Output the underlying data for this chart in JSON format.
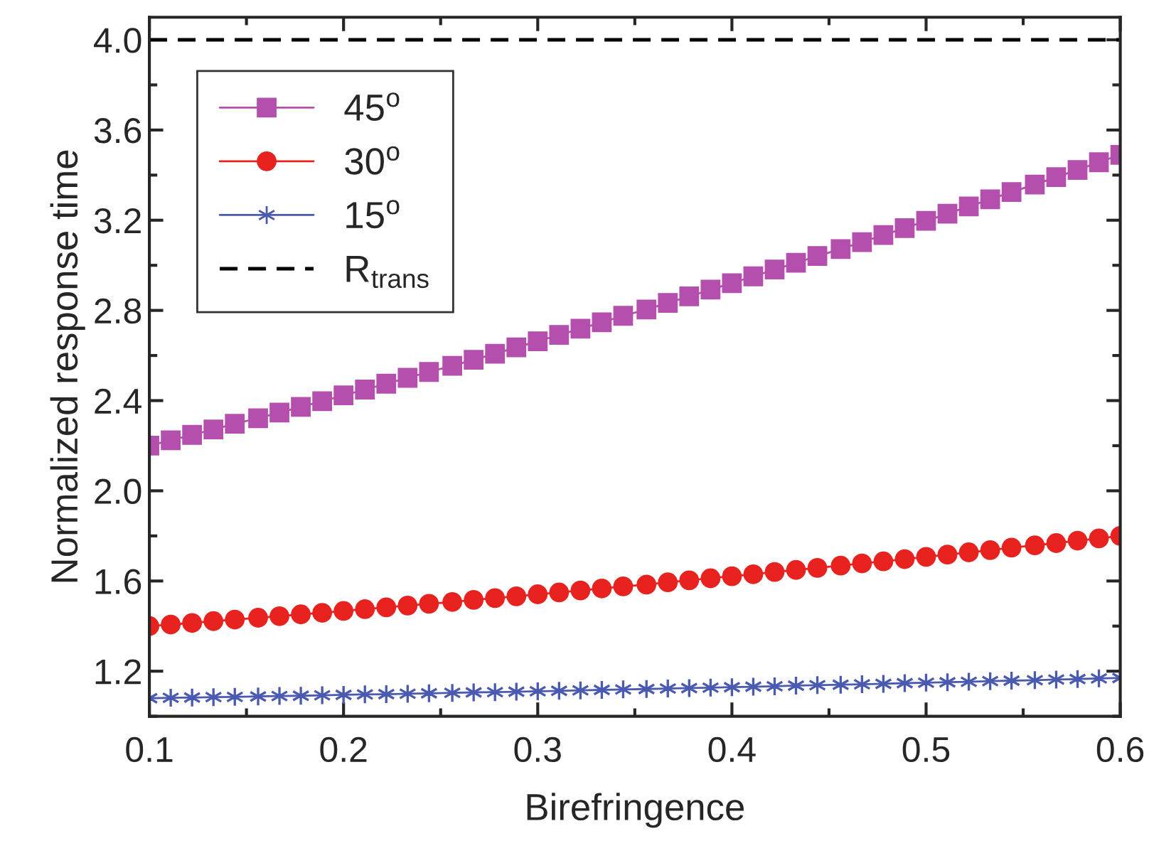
{
  "chart_data": {
    "type": "line",
    "xlabel": "Birefringence",
    "ylabel": "Normalized response time",
    "x": [
      0.1,
      0.111,
      0.122,
      0.133,
      0.144,
      0.156,
      0.167,
      0.178,
      0.189,
      0.2,
      0.211,
      0.222,
      0.233,
      0.244,
      0.256,
      0.267,
      0.278,
      0.289,
      0.3,
      0.311,
      0.322,
      0.333,
      0.344,
      0.356,
      0.367,
      0.378,
      0.389,
      0.4,
      0.411,
      0.422,
      0.433,
      0.444,
      0.456,
      0.467,
      0.478,
      0.489,
      0.5,
      0.511,
      0.522,
      0.533,
      0.544,
      0.556,
      0.567,
      0.578,
      0.589,
      0.6
    ],
    "series": [
      {
        "name": "45$^{o}$",
        "color": "#b44fae",
        "marker": "square",
        "values": [
          2.2,
          2.224,
          2.248,
          2.272,
          2.297,
          2.322,
          2.347,
          2.372,
          2.397,
          2.423,
          2.449,
          2.475,
          2.501,
          2.527,
          2.554,
          2.581,
          2.608,
          2.636,
          2.663,
          2.691,
          2.719,
          2.747,
          2.776,
          2.804,
          2.833,
          2.862,
          2.892,
          2.921,
          2.951,
          2.981,
          3.011,
          3.041,
          3.072,
          3.103,
          3.134,
          3.165,
          3.197,
          3.229,
          3.261,
          3.293,
          3.325,
          3.358,
          3.391,
          3.423,
          3.457,
          3.49
        ]
      },
      {
        "name": "30$^{o}$",
        "color": "#e8221f",
        "marker": "circle",
        "values": [
          1.4,
          1.407,
          1.414,
          1.422,
          1.429,
          1.437,
          1.444,
          1.452,
          1.459,
          1.467,
          1.475,
          1.483,
          1.491,
          1.499,
          1.507,
          1.516,
          1.524,
          1.532,
          1.541,
          1.549,
          1.558,
          1.567,
          1.576,
          1.584,
          1.594,
          1.603,
          1.612,
          1.621,
          1.63,
          1.64,
          1.649,
          1.658,
          1.668,
          1.678,
          1.687,
          1.697,
          1.707,
          1.717,
          1.727,
          1.737,
          1.748,
          1.758,
          1.768,
          1.779,
          1.789,
          1.8
        ]
      },
      {
        "name": "15$^{o}$",
        "color": "#4a5ab0",
        "marker": "cross",
        "values": [
          1.08,
          1.082,
          1.083,
          1.085,
          1.086,
          1.088,
          1.09,
          1.091,
          1.093,
          1.095,
          1.097,
          1.098,
          1.1,
          1.102,
          1.104,
          1.106,
          1.107,
          1.109,
          1.111,
          1.113,
          1.115,
          1.117,
          1.119,
          1.121,
          1.123,
          1.125,
          1.127,
          1.129,
          1.131,
          1.133,
          1.136,
          1.138,
          1.14,
          1.142,
          1.144,
          1.147,
          1.149,
          1.151,
          1.153,
          1.156,
          1.158,
          1.16,
          1.163,
          1.165,
          1.168,
          1.17
        ]
      }
    ],
    "ref_lines": [
      {
        "axis": "y",
        "value": 4.0,
        "label": "R$_{trans}$",
        "color": "#000000",
        "line_style": "dashed"
      }
    ],
    "xlim": [
      0.1,
      0.6
    ],
    "xticks": [
      0.1,
      0.2,
      0.3,
      0.4,
      0.5,
      0.6
    ],
    "ylim": [
      1.0,
      4.1
    ],
    "yticks": [
      1.2,
      1.6,
      {
        "value": 2,
        "label": "2.0"
      },
      2.4,
      2.8,
      3.2,
      3.6,
      {
        "value": 4,
        "label": "4.0"
      }
    ],
    "grid": false,
    "legend": "top left"
  }
}
